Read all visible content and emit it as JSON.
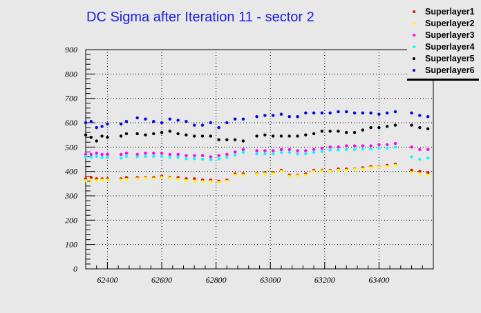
{
  "chart_data": {
    "type": "scatter",
    "title": "DC Sigma after Iteration 11 - sector 2",
    "xlabel": "",
    "ylabel": "",
    "xlim": [
      62320,
      63600
    ],
    "ylim": [
      0,
      900
    ],
    "xticks": [
      62400,
      62600,
      62800,
      63000,
      63200,
      63400
    ],
    "yticks": [
      0,
      100,
      200,
      300,
      400,
      500,
      600,
      700,
      800,
      900
    ],
    "grid": true,
    "legend_position": "top-right",
    "x": [
      62320,
      62340,
      62360,
      62380,
      62400,
      62450,
      62470,
      62510,
      62540,
      62570,
      62600,
      62630,
      62660,
      62690,
      62720,
      62750,
      62780,
      62810,
      62840,
      62870,
      62900,
      62950,
      62980,
      63010,
      63040,
      63070,
      63100,
      63130,
      63160,
      63190,
      63220,
      63250,
      63280,
      63310,
      63340,
      63370,
      63400,
      63430,
      63460,
      63520,
      63550,
      63580
    ],
    "series": [
      {
        "name": "Superlayer1",
        "color": "#ff0000",
        "values": [
          370,
          375,
          370,
          370,
          370,
          370,
          375,
          375,
          375,
          375,
          380,
          375,
          375,
          370,
          370,
          365,
          365,
          360,
          365,
          390,
          390,
          390,
          395,
          395,
          405,
          385,
          385,
          390,
          405,
          405,
          405,
          410,
          410,
          410,
          415,
          420,
          420,
          425,
          430,
          405,
          400,
          395
        ]
      },
      {
        "name": "Superlayer2",
        "color": "#ffff00",
        "values": [
          362,
          365,
          362,
          365,
          365,
          365,
          368,
          370,
          372,
          370,
          375,
          372,
          368,
          362,
          360,
          358,
          358,
          355,
          360,
          385,
          385,
          388,
          390,
          390,
          400,
          380,
          382,
          385,
          400,
          402,
          402,
          405,
          405,
          408,
          410,
          415,
          418,
          420,
          425,
          395,
          390,
          385
        ]
      },
      {
        "name": "Superlayer3",
        "color": "#ff00ff",
        "values": [
          470,
          470,
          475,
          470,
          470,
          470,
          475,
          470,
          475,
          475,
          475,
          470,
          470,
          465,
          465,
          465,
          460,
          465,
          470,
          480,
          490,
          485,
          485,
          485,
          490,
          490,
          485,
          485,
          490,
          495,
          500,
          500,
          505,
          505,
          505,
          505,
          510,
          510,
          515,
          500,
          490,
          490
        ]
      },
      {
        "name": "Superlayer4",
        "color": "#00ffff",
        "values": [
          460,
          458,
          462,
          458,
          458,
          455,
          462,
          460,
          462,
          462,
          462,
          458,
          458,
          452,
          452,
          450,
          448,
          452,
          458,
          468,
          478,
          472,
          472,
          472,
          478,
          478,
          472,
          472,
          478,
          482,
          488,
          488,
          490,
          490,
          492,
          492,
          495,
          495,
          500,
          460,
          450,
          455
        ]
      },
      {
        "name": "Superlayer5",
        "color": "#000000",
        "values": [
          550,
          540,
          525,
          545,
          540,
          545,
          555,
          555,
          550,
          555,
          560,
          565,
          555,
          550,
          545,
          545,
          545,
          530,
          530,
          530,
          525,
          545,
          550,
          545,
          545,
          545,
          545,
          550,
          555,
          565,
          565,
          565,
          560,
          560,
          570,
          580,
          580,
          585,
          590,
          590,
          580,
          575
        ]
      },
      {
        "name": "Superlayer6",
        "color": "#0000ff",
        "values": [
          600,
          605,
          580,
          585,
          595,
          595,
          605,
          620,
          615,
          605,
          600,
          615,
          610,
          605,
          590,
          590,
          600,
          580,
          600,
          615,
          615,
          625,
          630,
          630,
          635,
          625,
          625,
          640,
          640,
          640,
          640,
          645,
          645,
          640,
          640,
          640,
          635,
          640,
          645,
          640,
          630,
          625
        ]
      }
    ]
  }
}
